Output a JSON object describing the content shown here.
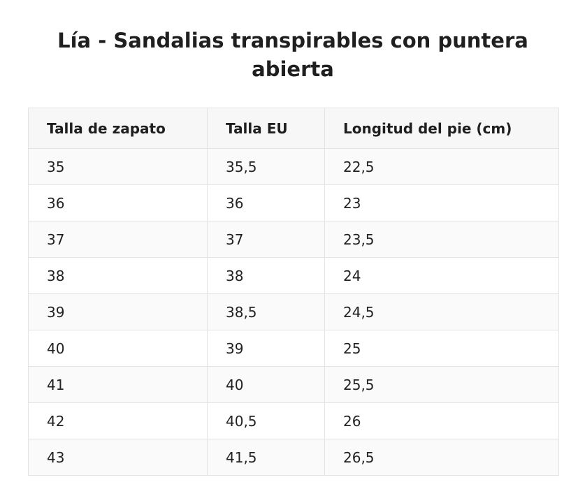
{
  "title": "Lía - Sandalias transpirables con puntera abierta",
  "table": {
    "headers": [
      "Talla de zapato",
      "Talla EU",
      "Longitud del pie (cm)"
    ],
    "rows": [
      [
        "35",
        "35,5",
        "22,5"
      ],
      [
        "36",
        "36",
        "23"
      ],
      [
        "37",
        "37",
        "23,5"
      ],
      [
        "38",
        "38",
        "24"
      ],
      [
        "39",
        "38,5",
        "24,5"
      ],
      [
        "40",
        "39",
        "25"
      ],
      [
        "41",
        "40",
        "25,5"
      ],
      [
        "42",
        "40,5",
        "26"
      ],
      [
        "43",
        "41,5",
        "26,5"
      ]
    ]
  }
}
